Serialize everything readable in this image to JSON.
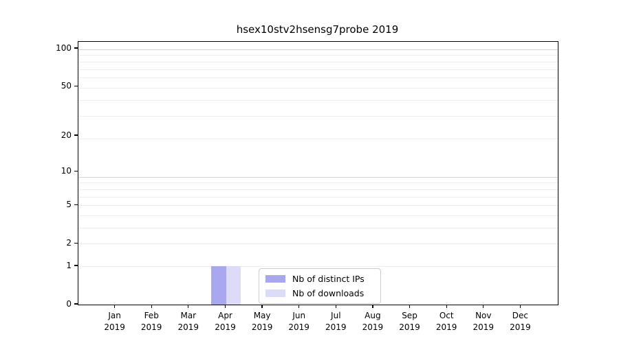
{
  "figure": {
    "title": "hsex10stv2hsensg7probe 2019"
  },
  "chart_data": {
    "type": "bar",
    "title": "hsex10stv2hsensg7probe 2019",
    "categories": [
      "Jan",
      "Feb",
      "Mar",
      "Apr",
      "May",
      "Jun",
      "Jul",
      "Aug",
      "Sep",
      "Oct",
      "Nov",
      "Dec"
    ],
    "year_label": "2019",
    "series": [
      {
        "name": "Nb of distinct IPs",
        "color": "#a8a8f0",
        "values": [
          0,
          0,
          0,
          1,
          0,
          0,
          0,
          0,
          0,
          0,
          0,
          0
        ]
      },
      {
        "name": "Nb of downloads",
        "color": "#dcdcf8",
        "values": [
          0,
          0,
          0,
          1,
          0,
          0,
          0,
          0,
          0,
          0,
          0,
          0
        ]
      }
    ],
    "xlabel": "",
    "ylabel": "",
    "yticks": [
      0,
      1,
      2,
      5,
      10,
      20,
      50,
      100
    ],
    "y_scale": "log10(1+value)",
    "ylim": [
      0,
      112
    ],
    "grid": "horizontal",
    "grid_minor_levels": [
      2,
      3,
      4,
      5,
      6,
      7,
      8,
      9,
      20,
      30,
      40,
      50,
      60,
      70,
      80,
      90
    ],
    "grid_major_levels": [
      10,
      100
    ],
    "legend_position": "lower-center-inside",
    "legend_items": [
      {
        "label": "Nb of distinct IPs",
        "color": "#a8a8f0"
      },
      {
        "label": "Nb of downloads",
        "color": "#dcdcf8"
      }
    ]
  }
}
